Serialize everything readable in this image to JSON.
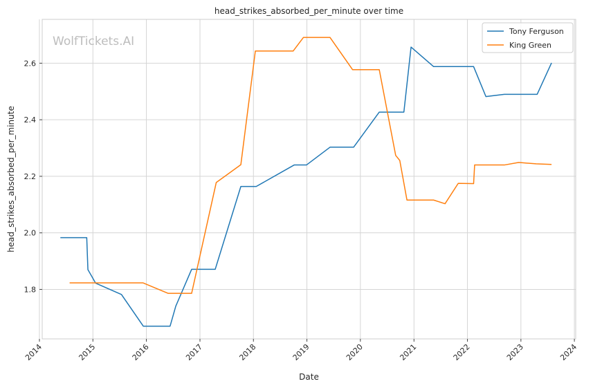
{
  "chart_data": {
    "type": "line",
    "title": "head_strikes_absorbed_per_minute over time",
    "xlabel": "Date",
    "ylabel": "head_strikes_absorbed_per_minute",
    "watermark": "WolfTickets.AI",
    "xlim": [
      "2014-01-20",
      "2024-01-10"
    ],
    "ylim": [
      1.625,
      2.755
    ],
    "x_ticks": [
      "2014",
      "2015",
      "2016",
      "2017",
      "2018",
      "2019",
      "2020",
      "2021",
      "2022",
      "2023",
      "2024"
    ],
    "y_ticks": [
      1.8,
      2.0,
      2.2,
      2.4,
      2.6
    ],
    "y_tick_labels": [
      "1.8",
      "2.0",
      "2.2",
      "2.4",
      "2.6"
    ],
    "grid": true,
    "legend_position": "top-right",
    "series": [
      {
        "name": "Tony Ferguson",
        "color": "#1f77b4",
        "points": [
          [
            "2014-05-24",
            1.983
          ],
          [
            "2014-11-20",
            1.983
          ],
          [
            "2014-11-28",
            1.87
          ],
          [
            "2015-01-20",
            1.822
          ],
          [
            "2015-07-15",
            1.782
          ],
          [
            "2015-12-11",
            1.67
          ],
          [
            "2016-06-11",
            1.67
          ],
          [
            "2016-07-20",
            1.741
          ],
          [
            "2016-11-05",
            1.871
          ],
          [
            "2017-04-15",
            1.871
          ],
          [
            "2017-10-07",
            2.164
          ],
          [
            "2018-01-20",
            2.164
          ],
          [
            "2018-10-06",
            2.24
          ],
          [
            "2018-12-29",
            2.24
          ],
          [
            "2019-06-08",
            2.303
          ],
          [
            "2019-11-16",
            2.303
          ],
          [
            "2020-05-09",
            2.427
          ],
          [
            "2020-10-24",
            2.427
          ],
          [
            "2020-12-12",
            2.657
          ],
          [
            "2021-05-15",
            2.588
          ],
          [
            "2022-02-12",
            2.588
          ],
          [
            "2022-05-07",
            2.482
          ],
          [
            "2022-09-10",
            2.49
          ],
          [
            "2023-04-22",
            2.49
          ],
          [
            "2023-07-29",
            2.601
          ]
        ]
      },
      {
        "name": "King Green",
        "color": "#ff7f0e",
        "points": [
          [
            "2014-07-26",
            1.823
          ],
          [
            "2015-12-10",
            1.823
          ],
          [
            "2016-05-29",
            1.786
          ],
          [
            "2016-11-05",
            1.786
          ],
          [
            "2017-04-22",
            2.178
          ],
          [
            "2017-10-07",
            2.241
          ],
          [
            "2018-01-14",
            2.643
          ],
          [
            "2018-09-29",
            2.643
          ],
          [
            "2018-12-08",
            2.691
          ],
          [
            "2019-06-08",
            2.691
          ],
          [
            "2019-11-09",
            2.577
          ],
          [
            "2020-05-09",
            2.577
          ],
          [
            "2020-08-29",
            2.274
          ],
          [
            "2020-09-26",
            2.256
          ],
          [
            "2020-11-14",
            2.116
          ],
          [
            "2021-05-15",
            2.116
          ],
          [
            "2021-08-01",
            2.103
          ],
          [
            "2021-10-30",
            2.175
          ],
          [
            "2022-02-12",
            2.174
          ],
          [
            "2022-02-19",
            2.24
          ],
          [
            "2022-09-10",
            2.24
          ],
          [
            "2022-12-17",
            2.249
          ],
          [
            "2023-04-15",
            2.244
          ],
          [
            "2023-07-29",
            2.242
          ]
        ]
      }
    ]
  }
}
